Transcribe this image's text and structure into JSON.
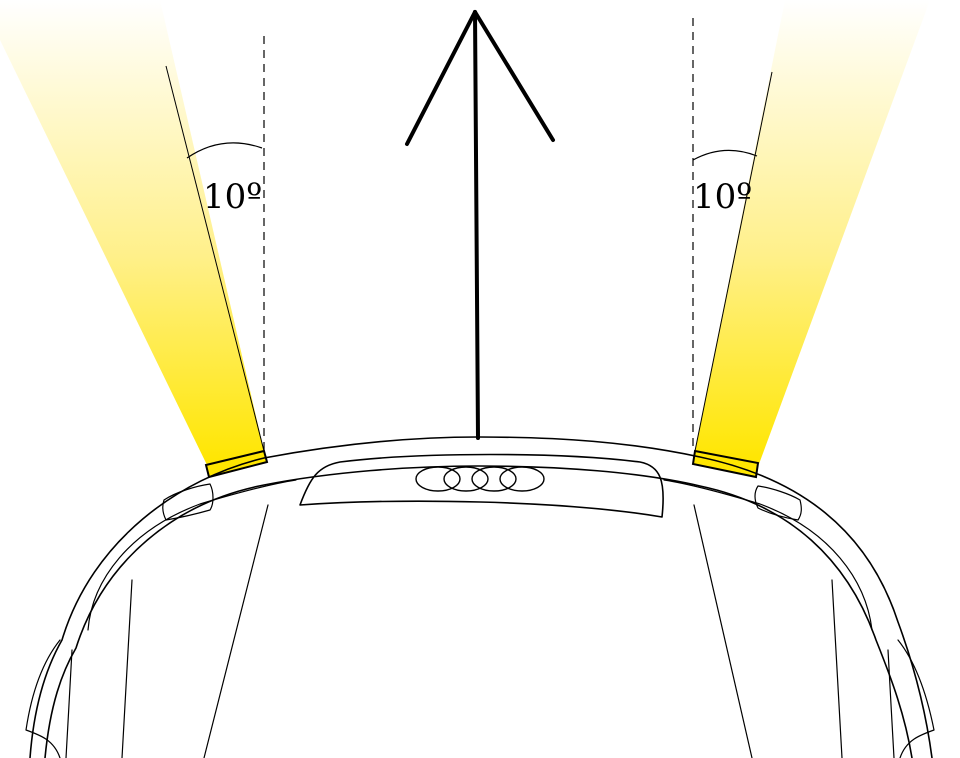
{
  "left_beam": {
    "angle_label": "10º"
  },
  "right_beam": {
    "angle_label": "10º"
  },
  "colors": {
    "beam": "#ffe600",
    "beam_fade": "#ffffff",
    "lamp": "#ffe600",
    "outline": "#000000"
  },
  "icons": {
    "forward_arrow": "arrow-up-icon",
    "brand_logo": "four-rings-logo"
  }
}
